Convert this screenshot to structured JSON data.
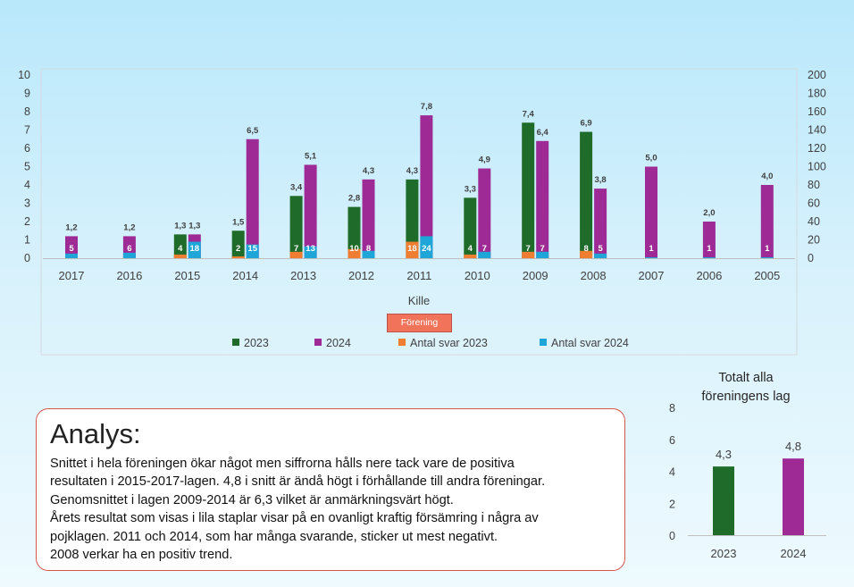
{
  "chart_data": [
    {
      "type": "bar",
      "xlabel": "Kille",
      "categories": [
        "2017",
        "2016",
        "2015",
        "2014",
        "2013",
        "2012",
        "2011",
        "2010",
        "2009",
        "2008",
        "2007",
        "2006",
        "2005"
      ],
      "ylim": [
        0,
        10
      ],
      "ylim_secondary": [
        0,
        200
      ],
      "y_ticks": [
        "0",
        "1",
        "2",
        "3",
        "4",
        "5",
        "6",
        "7",
        "8",
        "9",
        "10"
      ],
      "y2_ticks": [
        "0",
        "20",
        "40",
        "60",
        "80",
        "100",
        "120",
        "140",
        "160",
        "180",
        "200"
      ],
      "grid": false,
      "legend_position": "bottom",
      "colors": {
        "2023": "#1e6b2a",
        "2024": "#9e2a96",
        "Antal svar 2023": "#ef7d32",
        "Antal svar 2024": "#1ea6d8"
      },
      "series": [
        {
          "name": "2023",
          "axis": "primary",
          "values": [
            null,
            null,
            1.3,
            1.5,
            3.4,
            2.8,
            4.3,
            3.3,
            7.4,
            6.9,
            null,
            null,
            null
          ],
          "labels": [
            "",
            "",
            "1,3",
            "1,5",
            "3,4",
            "2,8",
            "4,3",
            "3,3",
            "7,4",
            "6,9",
            "",
            "",
            ""
          ]
        },
        {
          "name": "2024",
          "axis": "primary",
          "values": [
            1.2,
            1.2,
            1.3,
            6.5,
            5.1,
            4.3,
            7.8,
            4.9,
            6.4,
            3.8,
            5.0,
            2.0,
            4.0
          ],
          "labels": [
            "1,2",
            "1,2",
            "1,3",
            "6,5",
            "5,1",
            "4,3",
            "7,8",
            "4,9",
            "6,4",
            "3,8",
            "5,0",
            "2,0",
            "4,0"
          ]
        },
        {
          "name": "Antal svar 2023",
          "axis": "secondary",
          "values": [
            null,
            null,
            4,
            2,
            7,
            10,
            18,
            4,
            7,
            8,
            null,
            null,
            null
          ],
          "labels": [
            "",
            "",
            "4",
            "2",
            "7",
            "10",
            "18",
            "4",
            "7",
            "8",
            "",
            "",
            ""
          ]
        },
        {
          "name": "Antal svar 2024",
          "axis": "secondary",
          "values": [
            5,
            6,
            18,
            15,
            13,
            8,
            24,
            7,
            7,
            5,
            1,
            1,
            1
          ],
          "labels": [
            "5",
            "6",
            "18",
            "15",
            "13",
            "8",
            "24",
            "7",
            "7",
            "5",
            "1",
            "1",
            "1"
          ]
        }
      ]
    },
    {
      "type": "bar",
      "title": "Totalt alla föreningens lag",
      "title_lines": [
        "Totalt alla",
        "föreningens lag"
      ],
      "categories": [
        "2023",
        "2024"
      ],
      "values": [
        4.3,
        4.8
      ],
      "labels": [
        "4,3",
        "4,8"
      ],
      "colors": [
        "#1e6b2a",
        "#9e2a96"
      ],
      "ylim": [
        0,
        8
      ],
      "y_ticks": [
        "0",
        "2",
        "4",
        "6",
        "8"
      ]
    }
  ],
  "filter_button": {
    "label": "Förening"
  },
  "analysis": {
    "title": "Analys:",
    "lines": [
      "Snittet i hela föreningen ökar något men siffrorna hålls nere tack vare de positiva",
      "resultaten i 2015-2017-lagen. 4,8 i snitt är ändå högt i förhållande till andra föreningar.",
      "Genomsnittet i lagen 2009-2014 är 6,3 vilket är anmärkningsvärt högt.",
      "Årets resultat som visas i lila staplar visar på en ovanligt kraftig försämring i några av",
      "pojklagen. 2011 och 2014, som har många svarande, sticker ut mest negativt.",
      "2008 verkar ha en positiv trend."
    ]
  }
}
